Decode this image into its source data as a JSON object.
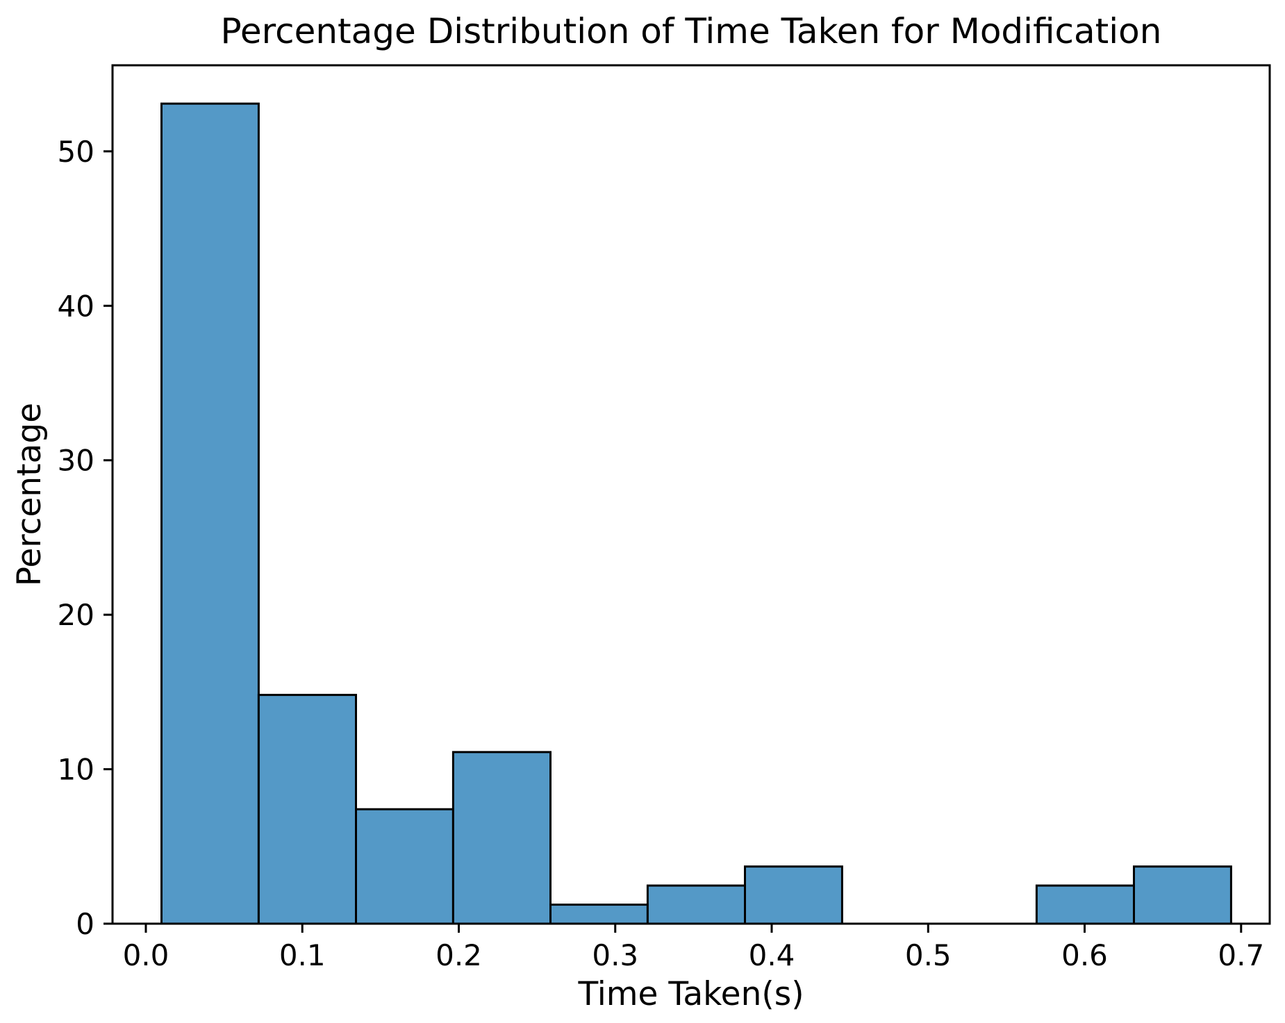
{
  "chart_data": {
    "type": "bar",
    "subtype": "histogram",
    "title": "Percentage Distribution of Time Taken for Modification",
    "xlabel": "Time Taken(s)",
    "ylabel": "Percentage",
    "bin_edges": [
      0.01,
      0.0721,
      0.1343,
      0.1964,
      0.2586,
      0.3207,
      0.3829,
      0.445,
      0.5072,
      0.5693,
      0.6315,
      0.6936
    ],
    "values": [
      53.09,
      14.81,
      7.41,
      11.11,
      1.23,
      2.47,
      3.7,
      0.0,
      0.0,
      2.47,
      3.7
    ],
    "xticks": [
      0.0,
      0.1,
      0.2,
      0.3,
      0.4,
      0.5,
      0.6,
      0.7
    ],
    "xtick_labels": [
      "0.0",
      "0.1",
      "0.2",
      "0.3",
      "0.4",
      "0.5",
      "0.6",
      "0.7"
    ],
    "yticks": [
      0,
      10,
      20,
      30,
      40,
      50
    ],
    "ytick_labels": [
      "0",
      "10",
      "20",
      "30",
      "40",
      "50"
    ],
    "xlim": [
      -0.0213,
      0.7183
    ],
    "ylim": [
      0,
      55.57
    ],
    "grid": false,
    "legend": null,
    "colors": {
      "bar_fill": "#5499c7",
      "bar_edge": "#000000",
      "axis": "#000000",
      "background": "#ffffff"
    }
  }
}
